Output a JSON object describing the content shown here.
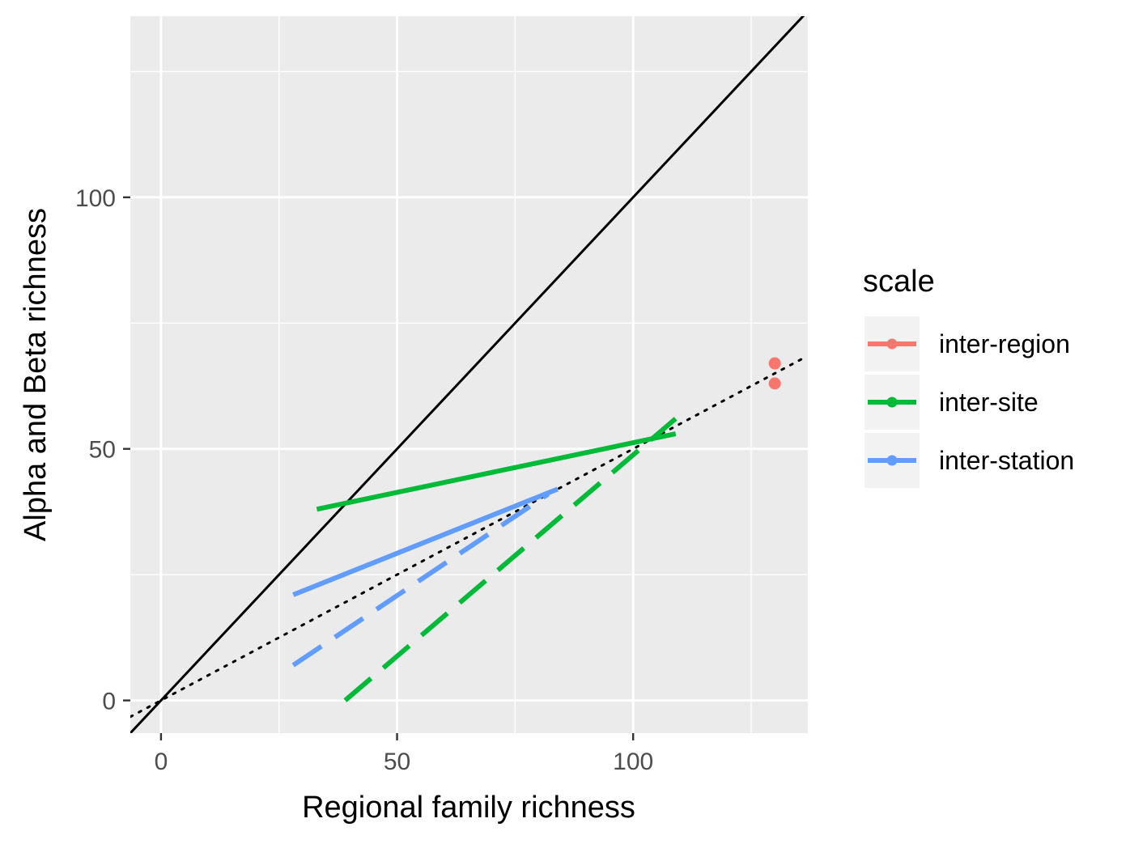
{
  "chart_data": {
    "type": "line",
    "title": "",
    "xlabel": "Regional family richness",
    "ylabel": "Alpha and Beta richness",
    "xlim": [
      -6.5,
      137
    ],
    "ylim": [
      -6.5,
      136
    ],
    "x_ticks": [
      0,
      50,
      100
    ],
    "y_ticks": [
      0,
      50,
      100
    ],
    "x_tick_labels": [
      "0",
      "50",
      "100"
    ],
    "y_tick_labels": [
      "0",
      "50",
      "100"
    ],
    "grid": true,
    "legend": {
      "title": "scale",
      "position": "right",
      "entries": [
        {
          "label": "inter-region",
          "color": "#F8766D"
        },
        {
          "label": "inter-site",
          "color": "#00BA38"
        },
        {
          "label": "inter-station",
          "color": "#619CFF"
        }
      ]
    },
    "reference_lines": [
      {
        "name": "1:1",
        "style": "solid",
        "color": "#000000",
        "points": [
          [
            -6.5,
            -6.5
          ],
          [
            137,
            137
          ]
        ]
      },
      {
        "name": "1:2",
        "style": "dotted",
        "color": "#000000",
        "points": [
          [
            -6.5,
            -3.25
          ],
          [
            136,
            68
          ]
        ]
      }
    ],
    "series": [
      {
        "scale": "inter-region",
        "color": "#F8766D",
        "points": [
          [
            130,
            67
          ],
          [
            130,
            63
          ]
        ]
      },
      {
        "scale": "inter-site",
        "style": "solid",
        "color": "#00BA38",
        "x": [
          33,
          109
        ],
        "y": [
          38,
          53
        ]
      },
      {
        "scale": "inter-site",
        "style": "dashed",
        "color": "#00BA38",
        "x": [
          39,
          109
        ],
        "y": [
          0,
          56
        ]
      },
      {
        "scale": "inter-station",
        "style": "solid",
        "color": "#619CFF",
        "x": [
          28,
          84
        ],
        "y": [
          21,
          42
        ]
      },
      {
        "scale": "inter-station",
        "style": "dashed",
        "color": "#619CFF",
        "x": [
          28,
          82
        ],
        "y": [
          7,
          41
        ]
      }
    ]
  }
}
